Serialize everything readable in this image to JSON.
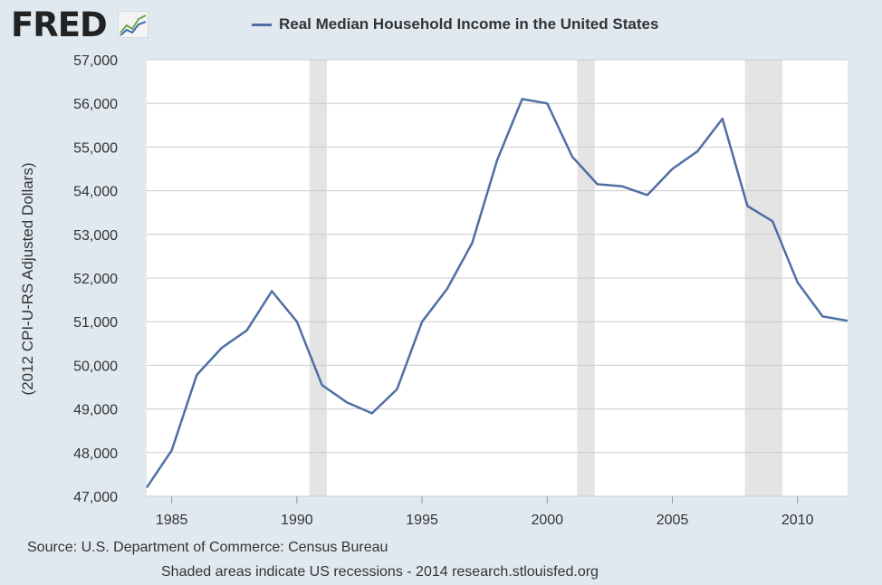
{
  "logo": {
    "text": "FRED"
  },
  "chart_data": {
    "type": "line",
    "title": "",
    "legend": {
      "entries": [
        "Real Median Household Income in the United States"
      ],
      "placement": "top"
    },
    "ylabel": "(2012 CPI-U-RS Adjusted Dollars)",
    "xlabel": "",
    "xlim": [
      1984,
      2012
    ],
    "ylim": [
      47000,
      57000
    ],
    "grid": true,
    "xticks": [
      1985,
      1990,
      1995,
      2000,
      2005,
      2010
    ],
    "yticks": [
      47000,
      48000,
      49000,
      50000,
      51000,
      52000,
      53000,
      54000,
      55000,
      56000,
      57000
    ],
    "ytick_labels": [
      "47,000",
      "48,000",
      "49,000",
      "50,000",
      "51,000",
      "52,000",
      "53,000",
      "54,000",
      "55,000",
      "56,000",
      "57,000"
    ],
    "recessions": [
      [
        1990.5,
        1991.2
      ],
      [
        2001.2,
        2001.9
      ],
      [
        2007.9,
        2009.4
      ]
    ],
    "series": [
      {
        "name": "Real Median Household Income in the United States",
        "color": "#4f6fa3",
        "x": [
          1984,
          1985,
          1986,
          1987,
          1988,
          1989,
          1990,
          1991,
          1992,
          1993,
          1994,
          1995,
          1996,
          1997,
          1998,
          1999,
          2000,
          2001,
          2002,
          2003,
          2004,
          2005,
          2006,
          2007,
          2008,
          2009,
          2010,
          2011,
          2012
        ],
        "values": [
          47200,
          48050,
          49780,
          50400,
          50800,
          51700,
          51000,
          49550,
          49150,
          48900,
          49450,
          51000,
          51750,
          52800,
          54700,
          56100,
          56000,
          54780,
          54150,
          54100,
          53900,
          54500,
          54900,
          55650,
          53650,
          53300,
          51900,
          51120,
          51020
        ]
      }
    ]
  },
  "footer": {
    "source": "Source: U.S. Department of Commerce: Census Bureau",
    "note": "Shaded areas indicate US recessions - 2014 research.stlouisfed.org"
  }
}
